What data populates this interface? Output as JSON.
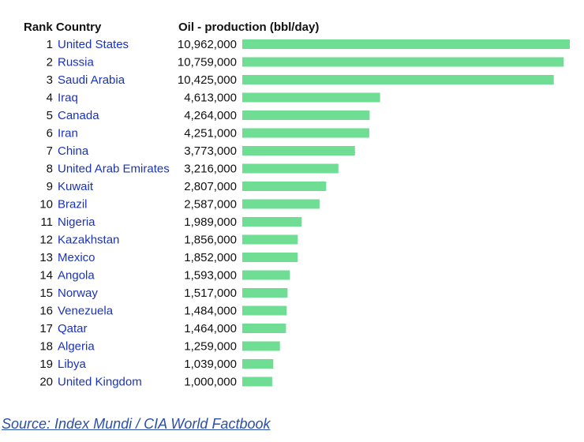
{
  "chart_data": {
    "type": "bar",
    "orientation": "horizontal",
    "columns": [
      "Rank",
      "Country",
      "Oil - production (bbl/day)"
    ],
    "header": {
      "rank_country": "Rank Country",
      "value": "Oil - production (bbl/day)"
    },
    "ranks": [
      1,
      2,
      3,
      4,
      5,
      6,
      7,
      8,
      9,
      10,
      11,
      12,
      13,
      14,
      15,
      16,
      17,
      18,
      19,
      20
    ],
    "categories": [
      "United States",
      "Russia",
      "Saudi Arabia",
      "Iraq",
      "Canada",
      "Iran",
      "China",
      "United Arab Emirates",
      "Kuwait",
      "Brazil",
      "Nigeria",
      "Kazakhstan",
      "Mexico",
      "Angola",
      "Norway",
      "Venezuela",
      "Qatar",
      "Algeria",
      "Libya",
      "United Kingdom"
    ],
    "values": [
      10962000,
      10759000,
      10425000,
      4613000,
      4264000,
      4251000,
      3773000,
      3216000,
      2807000,
      2587000,
      1989000,
      1856000,
      1852000,
      1593000,
      1517000,
      1484000,
      1464000,
      1259000,
      1039000,
      1000000
    ],
    "value_labels": [
      "10,962,000",
      "10,759,000",
      "10,425,000",
      "4,613,000",
      "4,264,000",
      "4,251,000",
      "3,773,000",
      "3,216,000",
      "2,807,000",
      "2,587,000",
      "1,989,000",
      "1,856,000",
      "1,852,000",
      "1,593,000",
      "1,517,000",
      "1,484,000",
      "1,464,000",
      "1,259,000",
      "1,039,000",
      "1,000,000"
    ],
    "bar_color": "#6fdd93",
    "link_color": "#1a33b8",
    "xlim": [
      0,
      10962000
    ],
    "grid": false,
    "legend": "none"
  },
  "source": {
    "text": "Source: Index Mundi / CIA World Factbook",
    "color": "#2a4fa8"
  }
}
